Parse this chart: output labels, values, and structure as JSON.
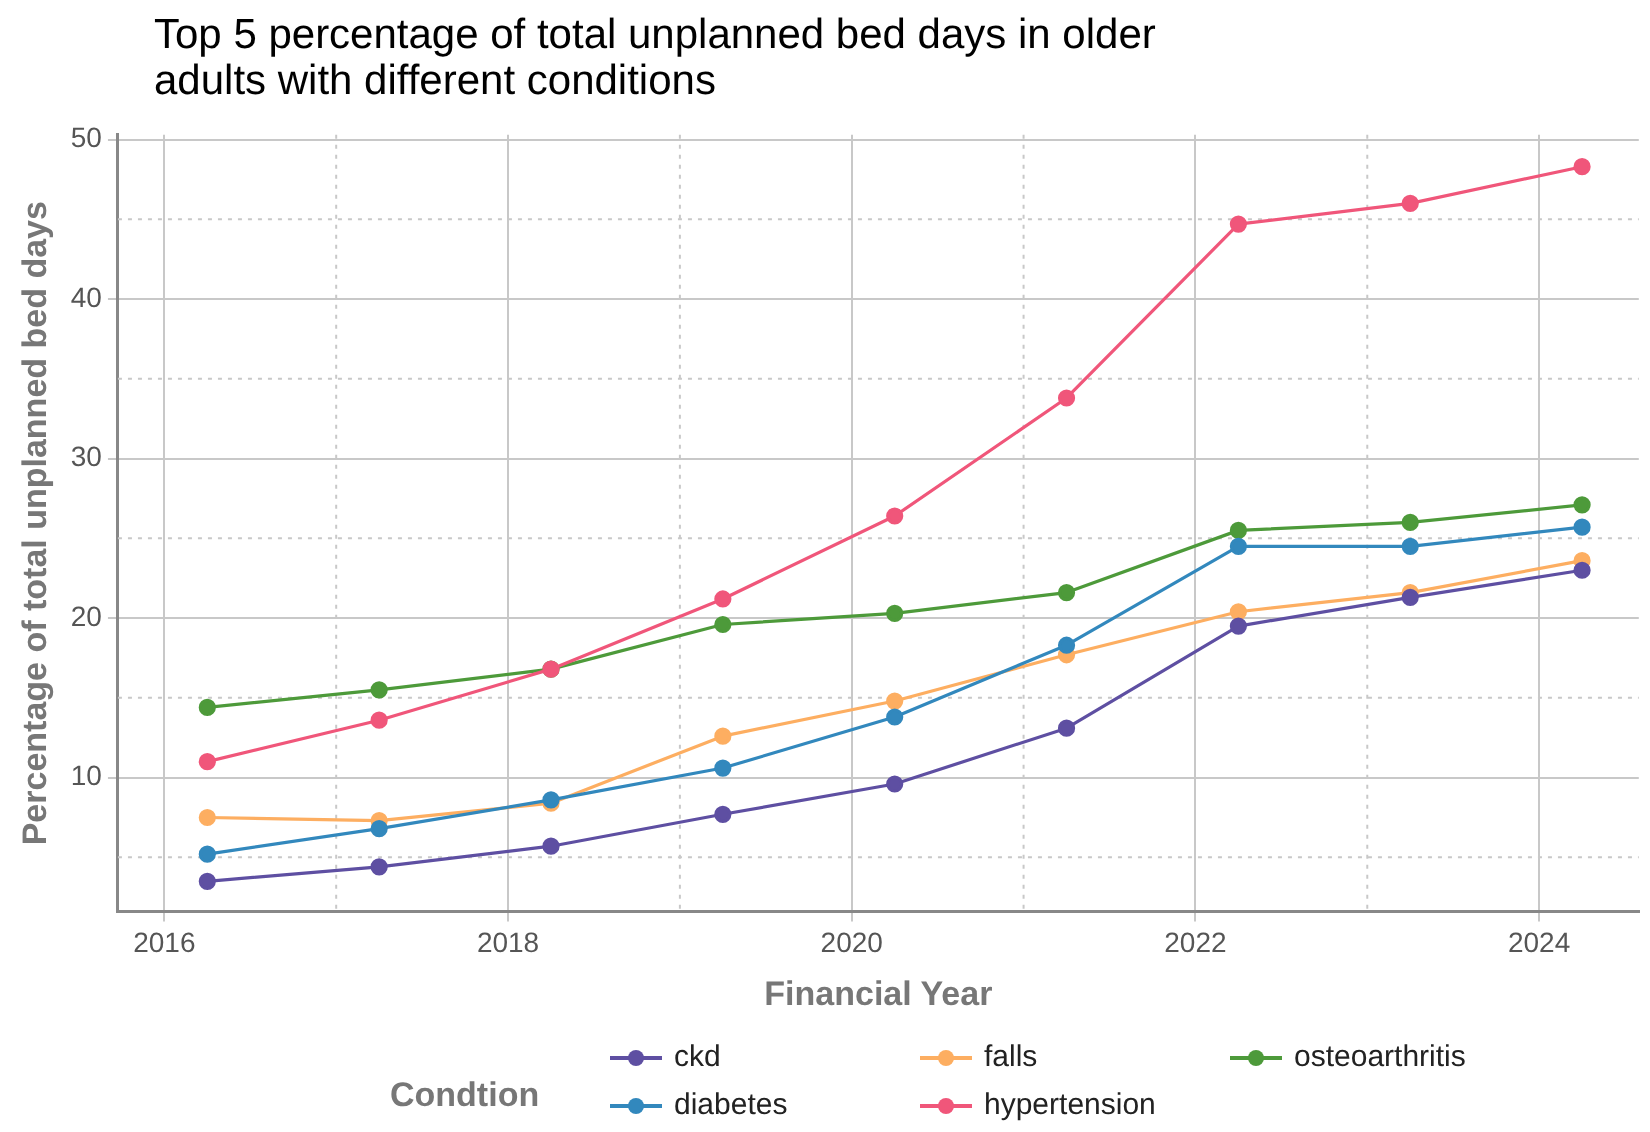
{
  "chart_data": {
    "type": "line",
    "title": "Top 5 percentage of total unplanned bed days in older adults with different conditions",
    "xlabel": "Financial Year",
    "ylabel": "Percentage of total unplanned bed days",
    "legend_title": "Condtion",
    "x": [
      2016.25,
      2017.25,
      2018.25,
      2019.25,
      2020.25,
      2021.25,
      2022.25,
      2023.25,
      2024.25
    ],
    "series": [
      {
        "name": "ckd",
        "color": "#5e4fa2",
        "values": [
          3.5,
          4.4,
          5.7,
          7.7,
          9.6,
          13.1,
          19.5,
          21.3,
          23.0
        ]
      },
      {
        "name": "diabetes",
        "color": "#3288bd",
        "values": [
          5.2,
          6.8,
          8.6,
          10.6,
          13.8,
          18.3,
          24.5,
          24.5,
          25.7
        ]
      },
      {
        "name": "falls",
        "color": "#fdae61",
        "values": [
          7.5,
          7.3,
          8.4,
          12.6,
          14.8,
          17.7,
          20.4,
          21.6,
          23.6
        ]
      },
      {
        "name": "hypertension",
        "color": "#f0567a",
        "values": [
          11.0,
          13.6,
          16.8,
          21.2,
          26.4,
          33.8,
          44.7,
          46.0,
          48.3
        ]
      },
      {
        "name": "osteoarthritis",
        "color": "#4d9a3a",
        "values": [
          14.4,
          15.5,
          16.8,
          19.6,
          20.3,
          21.6,
          25.5,
          26.0,
          27.1
        ]
      }
    ],
    "xlim": [
      2015.73,
      2024.58
    ],
    "xticks": [
      2016,
      2018,
      2020,
      2022,
      2024
    ],
    "ylim": [
      1.6,
      50.3
    ],
    "yticks": [
      10,
      20,
      30,
      40,
      50
    ],
    "grid": true,
    "legend": "bottom",
    "marker": "circle",
    "line_style": "solid"
  }
}
